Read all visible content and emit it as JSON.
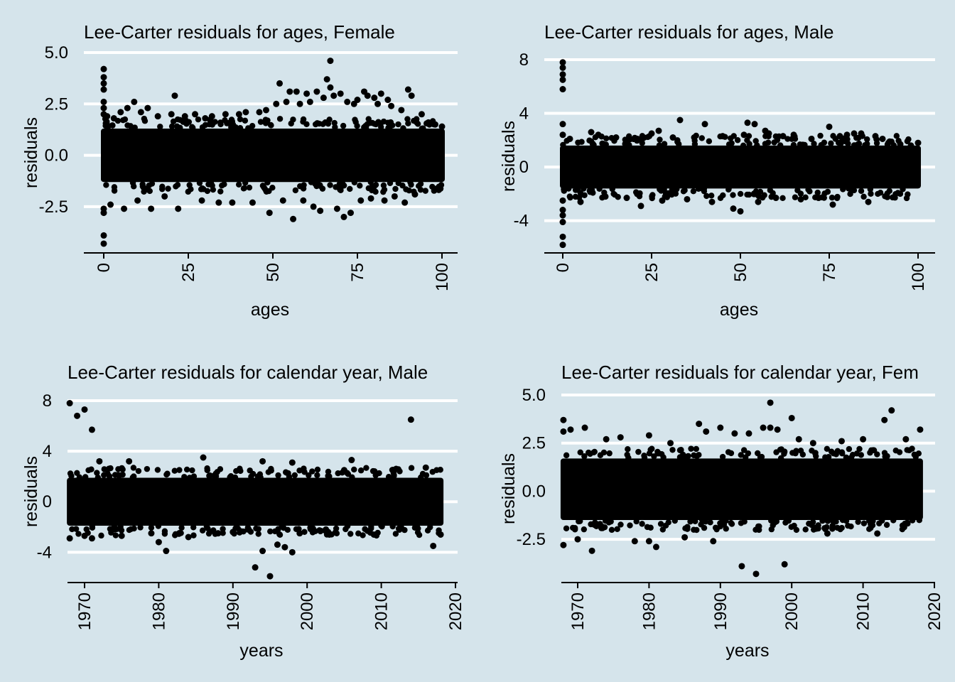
{
  "figure": {
    "background": "#d5e4eb",
    "gridline_color": "#ffffff",
    "point_color": "#000000"
  },
  "chart_data": [
    {
      "type": "scatter",
      "title": "Lee-Carter residuals for ages, Female",
      "xlabel": "ages",
      "ylabel": "residuals",
      "xlim": [
        -5,
        105
      ],
      "ylim": [
        -4.75,
        5.0
      ],
      "xticks": [
        0,
        25,
        50,
        75,
        100
      ],
      "xtick_labels": [
        "0",
        "25",
        "50",
        "75",
        "100"
      ],
      "yticks": [
        5.0,
        2.5,
        0.0,
        -2.5
      ],
      "ytick_labels": [
        "5.0",
        "2.5",
        "0.0",
        "-2.5"
      ],
      "grid": true,
      "dense_band": {
        "x_range": [
          0,
          100
        ],
        "low": -1.3,
        "high": 1.3
      },
      "points": [
        [
          0,
          4.2
        ],
        [
          0,
          3.8
        ],
        [
          0,
          3.5
        ],
        [
          0,
          3.2
        ],
        [
          0,
          2.6
        ],
        [
          0,
          2.3
        ],
        [
          0,
          2.0
        ],
        [
          0,
          -2.6
        ],
        [
          0,
          -2.8
        ],
        [
          0,
          -3.9
        ],
        [
          0,
          -4.3
        ],
        [
          1,
          1.9
        ],
        [
          2,
          -2.4
        ],
        [
          3,
          1.8
        ],
        [
          5,
          2.1
        ],
        [
          6,
          -2.6
        ],
        [
          7,
          2.3
        ],
        [
          9,
          2.6
        ],
        [
          10,
          -2.2
        ],
        [
          11,
          2.1
        ],
        [
          13,
          2.3
        ],
        [
          14,
          -2.6
        ],
        [
          16,
          1.9
        ],
        [
          18,
          -2.0
        ],
        [
          20,
          2.0
        ],
        [
          21,
          2.9
        ],
        [
          22,
          -2.6
        ],
        [
          24,
          1.9
        ],
        [
          27,
          2.0
        ],
        [
          29,
          -2.2
        ],
        [
          30,
          1.8
        ],
        [
          32,
          1.9
        ],
        [
          34,
          -2.3
        ],
        [
          36,
          2.0
        ],
        [
          38,
          -2.3
        ],
        [
          40,
          2.0
        ],
        [
          42,
          2.1
        ],
        [
          44,
          -2.3
        ],
        [
          46,
          2.1
        ],
        [
          48,
          2.2
        ],
        [
          49,
          -2.8
        ],
        [
          51,
          2.5
        ],
        [
          52,
          3.5
        ],
        [
          53,
          -2.2
        ],
        [
          54,
          2.6
        ],
        [
          55,
          3.1
        ],
        [
          56,
          -3.1
        ],
        [
          57,
          3.1
        ],
        [
          58,
          2.5
        ],
        [
          59,
          -2.2
        ],
        [
          60,
          3.0
        ],
        [
          61,
          2.6
        ],
        [
          62,
          -2.5
        ],
        [
          63,
          3.1
        ],
        [
          64,
          -2.7
        ],
        [
          65,
          2.8
        ],
        [
          66,
          3.7
        ],
        [
          67,
          4.6
        ],
        [
          67,
          3.3
        ],
        [
          68,
          2.9
        ],
        [
          69,
          -2.6
        ],
        [
          70,
          3.0
        ],
        [
          71,
          -3.0
        ],
        [
          72,
          2.6
        ],
        [
          73,
          -2.8
        ],
        [
          74,
          2.5
        ],
        [
          75,
          2.7
        ],
        [
          76,
          -2.2
        ],
        [
          77,
          3.1
        ],
        [
          78,
          2.9
        ],
        [
          79,
          -2.1
        ],
        [
          80,
          2.8
        ],
        [
          81,
          2.5
        ],
        [
          82,
          3.0
        ],
        [
          83,
          -2.2
        ],
        [
          84,
          2.7
        ],
        [
          85,
          2.4
        ],
        [
          86,
          -2.0
        ],
        [
          88,
          2.2
        ],
        [
          89,
          -2.3
        ],
        [
          90,
          3.2
        ],
        [
          91,
          2.9
        ],
        [
          92,
          -1.9
        ],
        [
          94,
          2.0
        ],
        [
          96,
          1.6
        ],
        [
          98,
          1.5
        ],
        [
          100,
          1.4
        ]
      ]
    },
    {
      "type": "scatter",
      "title": "Lee-Carter residuals for ages, Male",
      "xlabel": "ages",
      "ylabel": "residuals",
      "xlim": [
        -5,
        105
      ],
      "ylim": [
        -6.4,
        8.4
      ],
      "xticks": [
        0,
        25,
        50,
        75,
        100
      ],
      "xtick_labels": [
        "0",
        "25",
        "50",
        "75",
        "100"
      ],
      "yticks": [
        8,
        4,
        0,
        -4
      ],
      "ytick_labels": [
        "8",
        "4",
        "0",
        "-4"
      ],
      "grid": true,
      "dense_band": {
        "x_range": [
          0,
          100
        ],
        "low": -1.6,
        "high": 1.6
      },
      "points": [
        [
          0,
          7.8
        ],
        [
          0,
          7.4
        ],
        [
          0,
          6.9
        ],
        [
          0,
          6.5
        ],
        [
          0,
          5.8
        ],
        [
          0,
          3.2
        ],
        [
          0,
          2.4
        ],
        [
          0,
          -2.5
        ],
        [
          0,
          -3.2
        ],
        [
          0,
          -3.6
        ],
        [
          0,
          -4.1
        ],
        [
          0,
          -5.2
        ],
        [
          0,
          -5.8
        ],
        [
          2,
          2.1
        ],
        [
          5,
          -2.6
        ],
        [
          8,
          2.6
        ],
        [
          10,
          2.4
        ],
        [
          12,
          -2.2
        ],
        [
          15,
          2.2
        ],
        [
          18,
          -2.3
        ],
        [
          21,
          2.1
        ],
        [
          22,
          -2.9
        ],
        [
          25,
          2.5
        ],
        [
          27,
          2.7
        ],
        [
          28,
          -2.5
        ],
        [
          31,
          2.2
        ],
        [
          33,
          3.5
        ],
        [
          35,
          -2.4
        ],
        [
          37,
          2.2
        ],
        [
          40,
          3.2
        ],
        [
          42,
          -2.6
        ],
        [
          45,
          2.3
        ],
        [
          48,
          -3.1
        ],
        [
          50,
          -3.3
        ],
        [
          51,
          2.4
        ],
        [
          52,
          3.3
        ],
        [
          54,
          3.2
        ],
        [
          55,
          -2.6
        ],
        [
          57,
          2.7
        ],
        [
          58,
          2.5
        ],
        [
          60,
          -2.3
        ],
        [
          62,
          2.3
        ],
        [
          65,
          2.4
        ],
        [
          67,
          -2.4
        ],
        [
          70,
          2.1
        ],
        [
          72,
          -2.3
        ],
        [
          75,
          3.0
        ],
        [
          76,
          -2.8
        ],
        [
          78,
          2.3
        ],
        [
          80,
          2.4
        ],
        [
          82,
          2.5
        ],
        [
          84,
          2.5
        ],
        [
          86,
          -2.6
        ],
        [
          88,
          2.3
        ],
        [
          90,
          2.1
        ],
        [
          92,
          1.9
        ],
        [
          95,
          1.7
        ],
        [
          98,
          1.6
        ],
        [
          100,
          1.8
        ]
      ]
    },
    {
      "type": "scatter",
      "title": "Lee-Carter residuals for calendar year, Male",
      "xlabel": "years",
      "ylabel": "residuals",
      "xlim": [
        1966,
        2020
      ],
      "ylim": [
        -6.4,
        8.4
      ],
      "xticks": [
        1970,
        1980,
        1990,
        2000,
        2010,
        2020
      ],
      "xtick_labels": [
        "1970",
        "1980",
        "1990",
        "2000",
        "2010",
        "2020"
      ],
      "yticks": [
        8,
        4,
        0,
        -4
      ],
      "ytick_labels": [
        "8",
        "4",
        "0",
        "-4"
      ],
      "grid": true,
      "dense_band": {
        "x_range": [
          1968,
          2018
        ],
        "low": -1.9,
        "high": 1.9
      },
      "points": [
        [
          1968,
          7.8
        ],
        [
          1969,
          6.8
        ],
        [
          1970,
          7.3
        ],
        [
          1971,
          5.7
        ],
        [
          1968,
          -2.9
        ],
        [
          1970,
          -2.7
        ],
        [
          1971,
          -2.9
        ],
        [
          1972,
          3.2
        ],
        [
          1975,
          -2.7
        ],
        [
          1976,
          3.2
        ],
        [
          1979,
          -2.5
        ],
        [
          1980,
          -3.2
        ],
        [
          1981,
          -3.9
        ],
        [
          1984,
          -2.8
        ],
        [
          1986,
          3.5
        ],
        [
          1988,
          -2.5
        ],
        [
          1990,
          -2.4
        ],
        [
          1993,
          -5.2
        ],
        [
          1994,
          3.2
        ],
        [
          1994,
          -3.9
        ],
        [
          1995,
          -5.9
        ],
        [
          1996,
          -3.4
        ],
        [
          1997,
          -3.6
        ],
        [
          1998,
          3.1
        ],
        [
          1998,
          -4.0
        ],
        [
          1999,
          -2.5
        ],
        [
          2003,
          -2.6
        ],
        [
          2005,
          2.5
        ],
        [
          2006,
          3.3
        ],
        [
          2009,
          -2.6
        ],
        [
          2012,
          2.6
        ],
        [
          2014,
          6.5
        ],
        [
          2016,
          2.7
        ],
        [
          2017,
          -3.5
        ],
        [
          2018,
          -2.6
        ]
      ]
    },
    {
      "type": "scatter",
      "title": "Lee-Carter residuals for calendar year, Fem",
      "xlabel": "years",
      "ylabel": "residuals",
      "xlim": [
        1966,
        2020
      ],
      "ylim": [
        -4.75,
        5.0
      ],
      "xticks": [
        1970,
        1980,
        1990,
        2000,
        2010,
        2020
      ],
      "xtick_labels": [
        "1970",
        "1980",
        "1990",
        "2000",
        "2010",
        "2020"
      ],
      "yticks": [
        5.0,
        2.5,
        0.0,
        -2.5
      ],
      "ytick_labels": [
        "5.0",
        "2.5",
        "0.0",
        "-2.5"
      ],
      "grid": true,
      "dense_band": {
        "x_range": [
          1968,
          2018
        ],
        "low": -1.5,
        "high": 1.7
      },
      "points": [
        [
          1968,
          3.7
        ],
        [
          1968,
          3.1
        ],
        [
          1969,
          3.2
        ],
        [
          1971,
          3.3
        ],
        [
          1968,
          -2.8
        ],
        [
          1970,
          -2.5
        ],
        [
          1972,
          -3.1
        ],
        [
          1974,
          2.7
        ],
        [
          1976,
          2.8
        ],
        [
          1978,
          -2.6
        ],
        [
          1980,
          2.9
        ],
        [
          1980,
          -2.6
        ],
        [
          1981,
          -2.9
        ],
        [
          1983,
          2.5
        ],
        [
          1985,
          -2.4
        ],
        [
          1987,
          3.5
        ],
        [
          1988,
          3.1
        ],
        [
          1989,
          -2.6
        ],
        [
          1990,
          3.3
        ],
        [
          1992,
          3.0
        ],
        [
          1993,
          -3.9
        ],
        [
          1994,
          3.0
        ],
        [
          1995,
          -4.3
        ],
        [
          1996,
          3.3
        ],
        [
          1997,
          4.6
        ],
        [
          1997,
          3.3
        ],
        [
          1998,
          3.2
        ],
        [
          1999,
          -3.8
        ],
        [
          2000,
          3.8
        ],
        [
          2001,
          2.7
        ],
        [
          2003,
          2.5
        ],
        [
          2005,
          -2.2
        ],
        [
          2007,
          2.6
        ],
        [
          2010,
          2.7
        ],
        [
          2012,
          -2.2
        ],
        [
          2013,
          3.7
        ],
        [
          2014,
          4.2
        ],
        [
          2016,
          2.7
        ],
        [
          2018,
          3.2
        ]
      ]
    }
  ]
}
